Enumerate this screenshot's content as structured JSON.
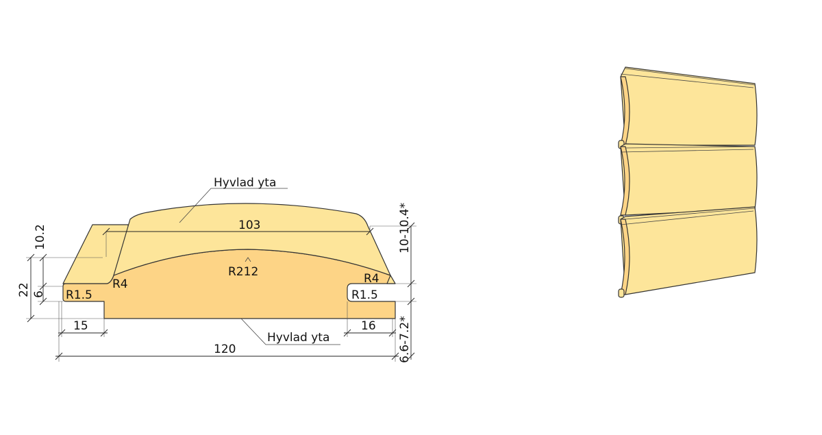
{
  "diagram": {
    "colors": {
      "face": "#fde59a",
      "body": "#fdd486",
      "outline": "#333333"
    },
    "labels": {
      "surface_top": "Hyvlad yta",
      "surface_bottom": "Hyvlad yta",
      "width_face": "103",
      "radius_face": "R212",
      "radius_left_top": "R4",
      "radius_left_bottom": "R1.5",
      "radius_right_top": "R4",
      "radius_right_bottom": "R1.5",
      "left_groove_width": "15",
      "right_tongue_width": "16",
      "total_width": "120",
      "left_height_top": "10.2",
      "left_height_total": "22",
      "left_height_low": "6",
      "right_height_top": "10-10.4*",
      "right_height_bottom": "6.6-7.2*"
    }
  }
}
